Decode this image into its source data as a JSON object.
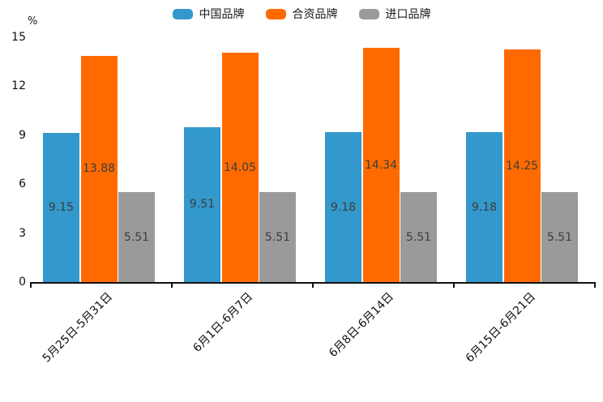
{
  "chart_data": {
    "type": "bar",
    "categories": [
      "5月25日-5月31日",
      "6月1日-6月7日",
      "6月8日-6月14日",
      "6月15日-6月21日"
    ],
    "series": [
      {
        "name": "中国品牌",
        "color": "#3398CB",
        "values": [
          9.15,
          9.51,
          9.18,
          9.18
        ]
      },
      {
        "name": "合资品牌",
        "color": "#FF6A00",
        "values": [
          13.88,
          14.05,
          14.34,
          14.25
        ]
      },
      {
        "name": "进口品牌",
        "color": "#9A9A9A",
        "values": [
          5.51,
          5.51,
          5.51,
          5.51
        ]
      }
    ],
    "title": "",
    "xlabel": "",
    "ylabel": "%",
    "ylim": [
      0,
      15
    ],
    "yticks": [
      0,
      3,
      6,
      9,
      12,
      15
    ],
    "legend_position": "top",
    "grid": false,
    "value_labels": true
  }
}
